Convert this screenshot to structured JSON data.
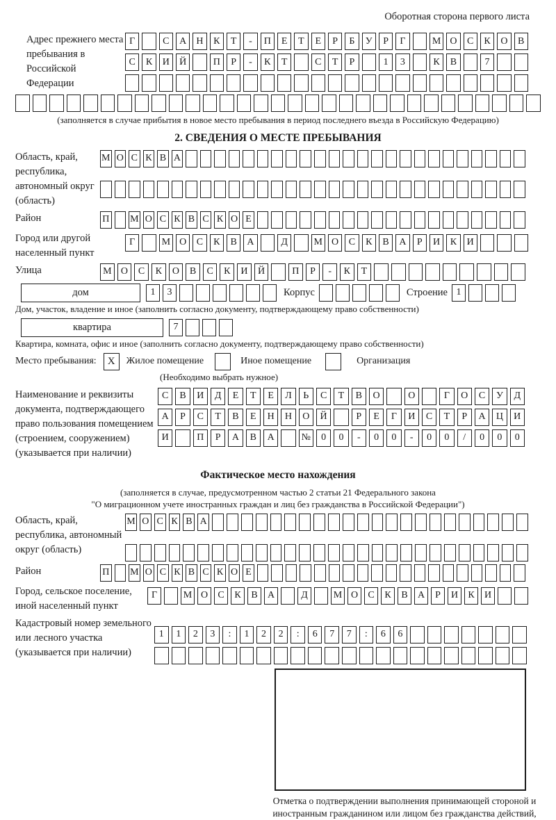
{
  "header": {
    "note": "Оборотная сторона первого листа"
  },
  "prev": {
    "label": "Адрес прежнего места пребывания в Российской Федерации",
    "caption": "(заполняется в случае прибытия в новое место пребывания в период последнего въезда в Российскую Федерацию)"
  },
  "s2": {
    "title": "2. СВЕДЕНИЯ О МЕСТЕ ПРЕБЫВАНИЯ",
    "region_label": "Область, край, республика, автономный округ (область)",
    "district_label": "Район",
    "city_label": "Город или другой населенный пункт",
    "street_label": "Улица",
    "house_box": "дом",
    "korpus_label": "Корпус",
    "stroenie_label": "Строение",
    "house_caption": "Дом, участок, владение и иное (заполнить согласно документу, подтверждающему право собственности)",
    "apartment_box": "квартира",
    "apartment_caption": "Квартира, комната, офис и иное (заполнить согласно документу, подтверждающему право собственности)",
    "stay_label": "Место пребывания:",
    "stay_options": [
      {
        "label": "Жилое помещение",
        "checked": "X"
      },
      {
        "label": "Иное помещение",
        "checked": ""
      },
      {
        "label": "Организация",
        "checked": ""
      }
    ],
    "stay_caption": "(Необходимо выбрать нужное)",
    "doc_label": "Наименование и реквизиты документа, подтверждающего право пользования помещением (строением, сооружением) (указывается при наличии)"
  },
  "fact": {
    "title": "Фактическое место нахождения",
    "caption1": "(заполняется в случае, предусмотренном частью 2 статьи 21 Федерального закона",
    "caption2": "\"О миграционном учете иностранных граждан и лиц без гражданства в Российской Федерации\")",
    "region_label": "Область, край, республика, автономный округ (область)",
    "district_label": "Район",
    "city_label": "Город, сельское поселение, иной населенный пункт",
    "cadastral_label": "Кадастровый номер земельного или лесного участка (указывается при наличии)",
    "mark_caption": "Отметка о подтверждении выполнения принимающей стороной и иностранным гражданином или лицом без гражданства действий, необходимых для его постановки на учет по месту пребывания"
  },
  "cells": {
    "prev1": {
      "text": "Г САНКТ-ПЕТЕРБУРГ МОСКОВ",
      "count": 24
    },
    "prev2": {
      "text": "СКИЙ ПР-КТ СТР 13 КВ 7",
      "count": 24
    },
    "prev3": {
      "text": "",
      "count": 24
    },
    "prev4": {
      "text": "",
      "count": 31
    },
    "region1": {
      "text": "МОСКВА",
      "count": 30
    },
    "region2": {
      "text": "",
      "count": 30
    },
    "district": {
      "text": "П МОСКВСКОЕ",
      "count": 30
    },
    "city": {
      "text": "Г МОСКВА Д МОСКВАРИКИ",
      "count": 24
    },
    "street": {
      "text": "МОСКОВСКИЙ ПР-КТ",
      "count": 25
    },
    "house": {
      "text": "13",
      "count": 8
    },
    "building": {
      "text": "",
      "count": 5
    },
    "structure": {
      "text": "1",
      "count": 4
    },
    "apartment": {
      "text": "7",
      "count": 4
    },
    "doc1": {
      "text": "СВИДЕТЕЛЬСТВО О ГОСУД",
      "count": 21
    },
    "doc2": {
      "text": "АРСТВЕННОЙ РЕГИСТРАЦИ",
      "count": 21
    },
    "doc3": {
      "text": "И ПРАВА №00-00-00/000",
      "count": 21
    },
    "fact_region1": {
      "text": "МОСКВА",
      "count": 28
    },
    "fact_region2": {
      "text": "",
      "count": 28
    },
    "fact_district": {
      "text": "П МОСКВСКОЕ",
      "count": 30
    },
    "fact_city": {
      "text": "Г МОСКВА Д МОСКВАРИКИ",
      "count": 23
    },
    "cadastral1": {
      "text": "1123:122:677:66",
      "count": 22
    },
    "cadastral2": {
      "text": "",
      "count": 22
    }
  }
}
